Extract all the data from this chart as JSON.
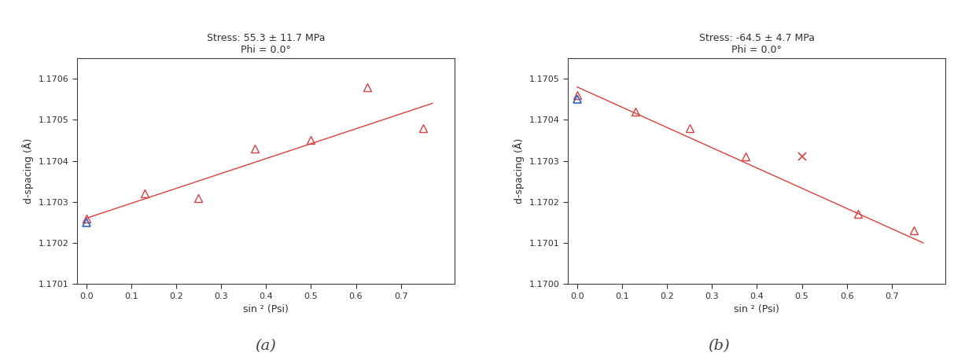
{
  "plot_a": {
    "title_line1": "Stress: 55.3 ± 11.7 MPa",
    "title_line2": "Phi = 0.0°",
    "xlabel": "sin ² (Psi)",
    "ylabel": "d-spacing (Å)",
    "xlim": [
      -0.02,
      0.82
    ],
    "ylim": [
      1.1701,
      1.17065
    ],
    "yticks": [
      1.1701,
      1.1702,
      1.1703,
      1.1704,
      1.1705,
      1.1706
    ],
    "xticks": [
      0.0,
      0.1,
      0.2,
      0.3,
      0.4,
      0.5,
      0.6,
      0.7
    ],
    "blue_points_x": [
      0.0
    ],
    "blue_points_y": [
      1.17025
    ],
    "red_points_x": [
      0.0,
      0.13,
      0.25,
      0.375,
      0.5,
      0.625,
      0.75
    ],
    "red_points_y": [
      1.17026,
      1.17032,
      1.17031,
      1.17043,
      1.17045,
      1.17058,
      1.17048
    ],
    "fit_x": [
      0.0,
      0.77
    ],
    "fit_y": [
      1.17026,
      1.17054
    ],
    "point_color": "#d94040",
    "blue_color": "#3060c0",
    "line_color": "#d94040"
  },
  "plot_b": {
    "title_line1": "Stress: -64.5 ± 4.7 MPa",
    "title_line2": "Phi = 0.0°",
    "xlabel": "sin ² (Psi)",
    "ylabel": "d-spacing (Å)",
    "xlim": [
      -0.02,
      0.82
    ],
    "ylim": [
      1.17,
      1.17055
    ],
    "yticks": [
      1.17,
      1.1701,
      1.1702,
      1.1703,
      1.1704,
      1.1705
    ],
    "xticks": [
      0.0,
      0.1,
      0.2,
      0.3,
      0.4,
      0.5,
      0.6,
      0.7
    ],
    "blue_points_x": [
      0.0
    ],
    "blue_points_y": [
      1.17045
    ],
    "red_points_x": [
      0.0,
      0.13,
      0.25,
      0.375,
      0.625,
      0.75
    ],
    "red_points_y": [
      1.17046,
      1.17042,
      1.17038,
      1.17031,
      1.17017,
      1.17013
    ],
    "cross_points_x": [
      0.5
    ],
    "cross_points_y": [
      1.17031
    ],
    "fit_x": [
      0.0,
      0.77
    ],
    "fit_y": [
      1.17048,
      1.1701
    ],
    "point_color": "#d94040",
    "blue_color": "#3060c0",
    "line_color": "#d94040"
  },
  "label_a": "(a)",
  "label_b": "(b)",
  "bg_color": "#ffffff",
  "font_size_title": 9,
  "font_size_label": 9,
  "font_size_tick": 8,
  "font_size_sublabel": 14
}
